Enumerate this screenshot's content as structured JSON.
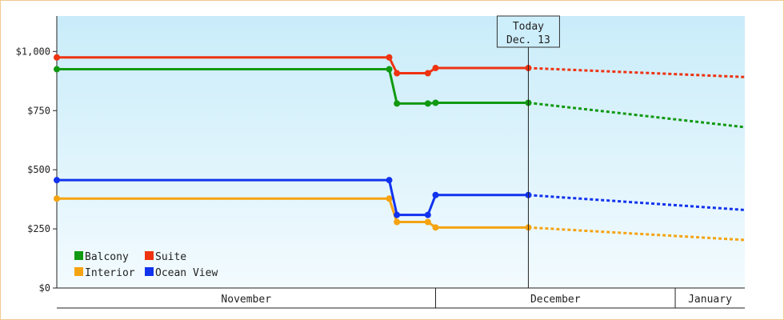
{
  "chart_data": {
    "type": "line",
    "x_axis": {
      "months": [
        "November",
        "December",
        "January"
      ]
    },
    "y_axis": {
      "ylim": [
        0,
        1150
      ],
      "ticks": [
        0,
        250,
        500,
        750,
        1000
      ],
      "tick_labels": [
        "$0",
        "$250",
        "$500",
        "$750",
        "$1,000"
      ]
    },
    "today_marker": {
      "line1": "Today",
      "line2": "Dec. 13",
      "date": "Dec 13"
    },
    "grid": false,
    "legend_position": "bottom-left",
    "series": [
      {
        "name": "Balcony",
        "color": "#119911",
        "points": [
          [
            "Oct 13",
            925
          ],
          [
            "Nov 25",
            925
          ],
          [
            "Nov 26",
            780
          ],
          [
            "Nov 30",
            780
          ],
          [
            "Dec 1",
            783
          ],
          [
            "Dec 13",
            783
          ]
        ],
        "forecast": [
          [
            "Dec 13",
            783
          ],
          [
            "Jan 10",
            680
          ]
        ]
      },
      {
        "name": "Suite",
        "color": "#ee3311",
        "points": [
          [
            "Oct 13",
            975
          ],
          [
            "Nov 25",
            975
          ],
          [
            "Nov 26",
            908
          ],
          [
            "Nov 30",
            908
          ],
          [
            "Dec 1",
            930
          ],
          [
            "Dec 13",
            930
          ]
        ],
        "forecast": [
          [
            "Dec 13",
            930
          ],
          [
            "Jan 10",
            892
          ]
        ]
      },
      {
        "name": "Interior",
        "color": "#f5a311",
        "points": [
          [
            "Oct 13",
            378
          ],
          [
            "Nov 25",
            378
          ],
          [
            "Nov 26",
            279
          ],
          [
            "Nov 30",
            279
          ],
          [
            "Dec 1",
            256
          ],
          [
            "Dec 13",
            256
          ]
        ],
        "forecast": [
          [
            "Dec 13",
            256
          ],
          [
            "Jan 10",
            203
          ]
        ]
      },
      {
        "name": "Ocean View",
        "color": "#1133ee",
        "points": [
          [
            "Oct 13",
            456
          ],
          [
            "Nov 25",
            456
          ],
          [
            "Nov 26",
            309
          ],
          [
            "Nov 30",
            309
          ],
          [
            "Dec 1",
            393
          ],
          [
            "Dec 13",
            393
          ]
        ],
        "forecast": [
          [
            "Dec 13",
            393
          ],
          [
            "Jan 10",
            330
          ]
        ]
      }
    ]
  }
}
